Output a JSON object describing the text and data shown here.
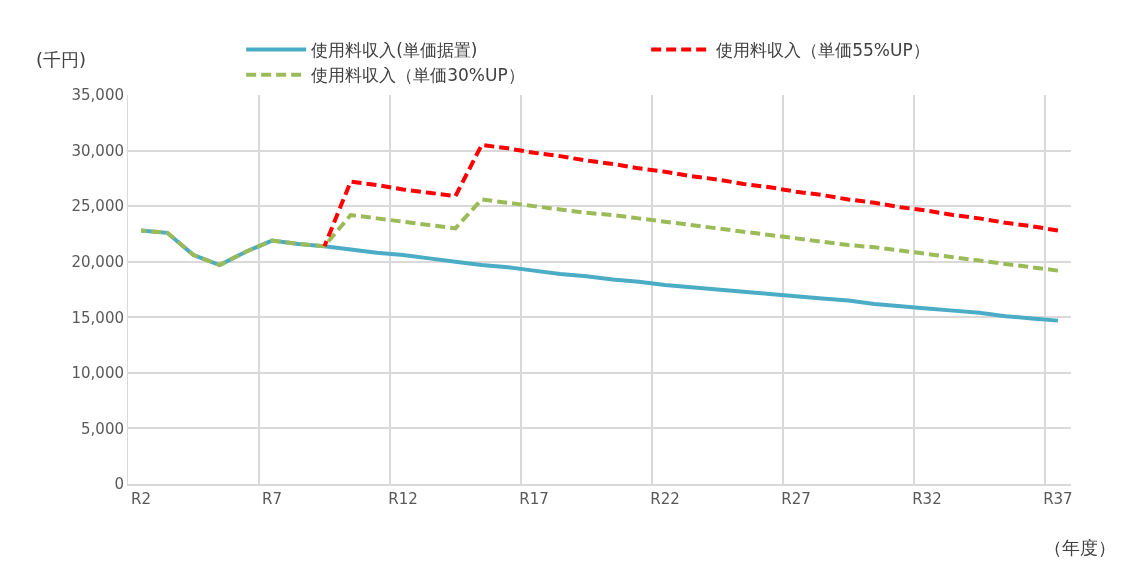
{
  "chart_data": {
    "type": "line",
    "ylabel": "(千円)",
    "xlabel": "（年度）",
    "categories": [
      "R2",
      null,
      null,
      null,
      null,
      "R7",
      null,
      null,
      null,
      null,
      "R12",
      null,
      null,
      null,
      null,
      "R17",
      null,
      null,
      null,
      null,
      "R22",
      null,
      null,
      null,
      null,
      "R27",
      null,
      null,
      null,
      null,
      "R32",
      null,
      null,
      null,
      null,
      "R37"
    ],
    "series": [
      {
        "name": "使用料収入(単価据置)",
        "color": "#4bacc6",
        "line_style": "solid",
        "values": [
          22800,
          22600,
          20600,
          19700,
          20900,
          21900,
          21600,
          21400,
          21100,
          20800,
          20600,
          20300,
          20000,
          19700,
          19500,
          19200,
          18900,
          18700,
          18400,
          18200,
          17900,
          17700,
          17500,
          17300,
          17100,
          16900,
          16700,
          16500,
          16200,
          16000,
          15800,
          15600,
          15400,
          15100,
          14900,
          14700
        ]
      },
      {
        "name": "使用料収入（単価55%UP）",
        "color": "#ff0000",
        "line_style": "dashed",
        "values": [
          null,
          null,
          null,
          null,
          null,
          null,
          null,
          21400,
          27200,
          26900,
          26500,
          26200,
          25900,
          30500,
          30200,
          29800,
          29500,
          29100,
          28800,
          28400,
          28100,
          27700,
          27400,
          27000,
          26700,
          26300,
          26000,
          25600,
          25300,
          24900,
          24600,
          24200,
          23900,
          23500,
          23200,
          22800
        ]
      },
      {
        "name": "使用料収入（単価30%UP）",
        "color": "#9bbb59",
        "line_style": "dashed",
        "values": [
          22800,
          22600,
          20600,
          19700,
          20900,
          21900,
          21600,
          21400,
          24200,
          23900,
          23600,
          23300,
          23000,
          25600,
          25300,
          25000,
          24700,
          24400,
          24200,
          23900,
          23600,
          23300,
          23000,
          22700,
          22400,
          22100,
          21800,
          21500,
          21300,
          21000,
          20700,
          20400,
          20100,
          19800,
          19500,
          19200
        ]
      }
    ],
    "ylim": [
      0,
      35000
    ],
    "yticks": [
      {
        "value": 0,
        "label": "0"
      },
      {
        "value": 5000,
        "label": "5,000"
      },
      {
        "value": 10000,
        "label": "10,000"
      },
      {
        "value": 15000,
        "label": "15,000"
      },
      {
        "value": 20000,
        "label": "20,000"
      },
      {
        "value": 25000,
        "label": "25,000"
      },
      {
        "value": 30000,
        "label": "30,000"
      },
      {
        "value": 35000,
        "label": "35,000"
      }
    ],
    "grid": true,
    "legend": "top",
    "marker": "none"
  }
}
